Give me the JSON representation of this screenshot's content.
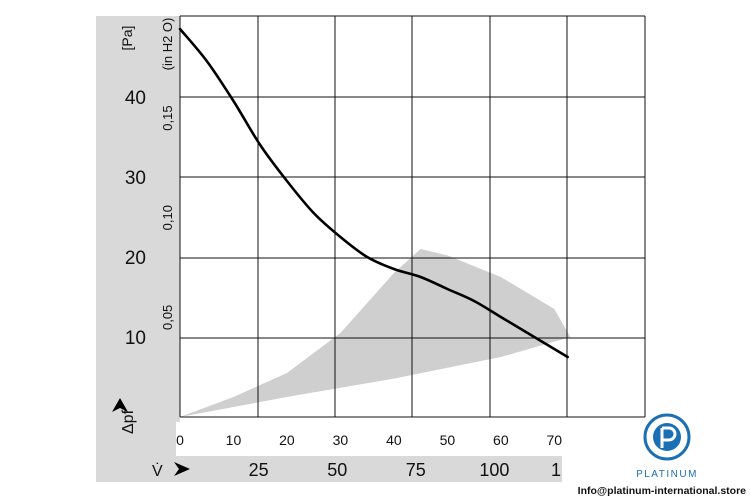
{
  "chart_data": {
    "type": "line",
    "left_axis": {
      "unit_label": "[Pa]",
      "ticks": [
        10,
        20,
        30,
        40
      ],
      "range": [
        0,
        50
      ]
    },
    "right_axis": {
      "unit_label": "(in H2 O)",
      "ticks": [
        "0,05",
        "0,10",
        "0,15"
      ],
      "tick_values": [
        0.05,
        0.1,
        0.15
      ]
    },
    "pressure_label": "Δpf",
    "x_axis_inner": {
      "ticks": [
        0,
        10,
        20,
        30,
        40,
        50,
        60,
        70
      ],
      "range": [
        0,
        72
      ]
    },
    "x_axis_outer": {
      "label": "V̇",
      "ticks": [
        "25",
        "50",
        "75",
        "100",
        "1"
      ],
      "tick_values": [
        14.7,
        29.4,
        44.1,
        58.8,
        73.5
      ]
    },
    "grid": true,
    "series": [
      {
        "x": [
          0,
          5,
          10,
          15,
          20,
          25,
          30,
          35,
          40,
          45,
          50,
          55,
          60,
          65,
          70,
          72.5
        ],
        "y": [
          48.5,
          44.5,
          39.5,
          34,
          29.5,
          25.5,
          22.5,
          20,
          18.5,
          17.5,
          16,
          14.5,
          12.5,
          10.5,
          8.5,
          7.5
        ]
      }
    ],
    "shaded_region": {
      "upper": {
        "x": [
          0,
          10,
          20,
          30,
          40,
          45,
          50,
          60,
          70,
          73
        ],
        "y": [
          0,
          2.5,
          5.5,
          10.5,
          18,
          21,
          20.2,
          17.5,
          13.5,
          10
        ]
      },
      "lower": {
        "x": [
          0,
          20,
          40,
          60,
          73
        ],
        "y": [
          0,
          2.5,
          4.8,
          7.5,
          10
        ]
      }
    }
  },
  "branding": {
    "logo_text": "PLATINUM",
    "contact": "Info@platinum-international.store",
    "colors": {
      "accent": "#1b6fb5",
      "panel": "#d9d9d9",
      "curve": "#000000",
      "shade": "#cfcfcf"
    }
  }
}
